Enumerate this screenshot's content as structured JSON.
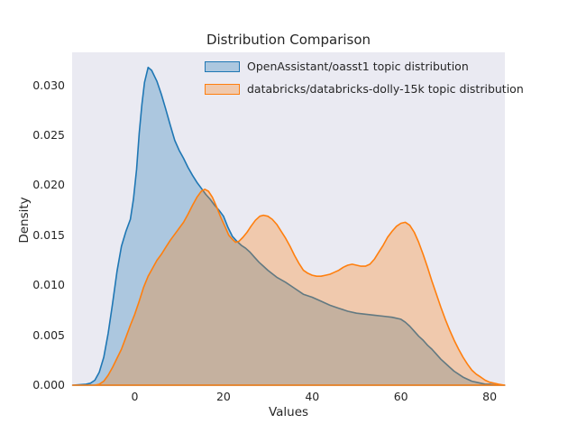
{
  "chart_data": {
    "type": "area",
    "subtype": "kde-density",
    "title": "Distribution Comparison",
    "xlabel": "Values",
    "ylabel": "Density",
    "xlim": [
      -14.1,
      83.4
    ],
    "ylim": [
      0,
      0.0333
    ],
    "x_ticks": [
      "0",
      "20",
      "40",
      "60",
      "80"
    ],
    "y_ticks": [
      "0.000",
      "0.005",
      "0.010",
      "0.015",
      "0.020",
      "0.025",
      "0.030"
    ],
    "grid": false,
    "legend_position": "upper center inside plot",
    "background_color": "#eaeaf2",
    "figure_background": "#ffffff",
    "text_color": "#262626",
    "series": [
      {
        "name": "OpenAssistant/oasst1 topic distribution",
        "line_color": "#1f77b4",
        "fill_color": "rgba(31,119,180,0.3)",
        "peak": {
          "x": 3,
          "density": 0.0318
        },
        "points": [
          [
            -14,
            0
          ],
          [
            -11,
            0.0001
          ],
          [
            -10,
            0.0002
          ],
          [
            -9,
            0.0005
          ],
          [
            -8,
            0.0013
          ],
          [
            -7,
            0.0028
          ],
          [
            -6,
            0.0052
          ],
          [
            -5,
            0.0082
          ],
          [
            -4,
            0.0114
          ],
          [
            -3,
            0.0139
          ],
          [
            -2,
            0.0154
          ],
          [
            -1,
            0.0166
          ],
          [
            -0.3,
            0.0186
          ],
          [
            0.4,
            0.0216
          ],
          [
            1,
            0.0252
          ],
          [
            1.6,
            0.0281
          ],
          [
            2.2,
            0.0303
          ],
          [
            3,
            0.0318
          ],
          [
            3.8,
            0.0315
          ],
          [
            5,
            0.0304
          ],
          [
            6,
            0.0291
          ],
          [
            7,
            0.0276
          ],
          [
            8,
            0.026
          ],
          [
            9,
            0.0245
          ],
          [
            10,
            0.0235
          ],
          [
            11,
            0.0227
          ],
          [
            12,
            0.0218
          ],
          [
            13,
            0.021
          ],
          [
            14,
            0.0203
          ],
          [
            15,
            0.0197
          ],
          [
            16,
            0.0191
          ],
          [
            17,
            0.0186
          ],
          [
            18,
            0.018
          ],
          [
            19,
            0.0175
          ],
          [
            20,
            0.0169
          ],
          [
            21,
            0.0158
          ],
          [
            22,
            0.0149
          ],
          [
            23,
            0.0144
          ],
          [
            24,
            0.014
          ],
          [
            25,
            0.0137
          ],
          [
            26,
            0.0133
          ],
          [
            27,
            0.0128
          ],
          [
            28,
            0.0123
          ],
          [
            29,
            0.0119
          ],
          [
            30,
            0.0115
          ],
          [
            32,
            0.0108
          ],
          [
            34,
            0.0103
          ],
          [
            36,
            0.0097
          ],
          [
            38,
            0.0091
          ],
          [
            40,
            0.0088
          ],
          [
            42,
            0.0084
          ],
          [
            44,
            0.008
          ],
          [
            46,
            0.0077
          ],
          [
            48,
            0.0074
          ],
          [
            50,
            0.0072
          ],
          [
            52,
            0.0071
          ],
          [
            54,
            0.007
          ],
          [
            56,
            0.0069
          ],
          [
            58,
            0.0068
          ],
          [
            60,
            0.0066
          ],
          [
            61,
            0.0063
          ],
          [
            62,
            0.0059
          ],
          [
            63,
            0.0054
          ],
          [
            64,
            0.0049
          ],
          [
            65,
            0.0045
          ],
          [
            66,
            0.004
          ],
          [
            67,
            0.0036
          ],
          [
            68,
            0.0031
          ],
          [
            69,
            0.0026
          ],
          [
            70,
            0.0022
          ],
          [
            71,
            0.0018
          ],
          [
            72,
            0.0014
          ],
          [
            73,
            0.0011
          ],
          [
            74,
            0.0008
          ],
          [
            75,
            0.0006
          ],
          [
            76,
            0.0004
          ],
          [
            77,
            0.0003
          ],
          [
            78,
            0.0002
          ],
          [
            79,
            0.0001
          ],
          [
            80,
            0.0001
          ],
          [
            81.5,
            0
          ],
          [
            83.4,
            0
          ]
        ]
      },
      {
        "name": "databricks/databricks-dolly-15k topic distribution",
        "line_color": "#ff7f0e",
        "fill_color": "rgba(255,127,14,0.3)",
        "peak": {
          "x": 16,
          "density": 0.0196
        },
        "points": [
          [
            -14,
            0
          ],
          [
            -9,
            0
          ],
          [
            -8,
            0.0001
          ],
          [
            -7,
            0.0004
          ],
          [
            -6,
            0.001
          ],
          [
            -5,
            0.0018
          ],
          [
            -4,
            0.0027
          ],
          [
            -3,
            0.0036
          ],
          [
            -2,
            0.0048
          ],
          [
            -1,
            0.006
          ],
          [
            0,
            0.0071
          ],
          [
            1,
            0.0084
          ],
          [
            2,
            0.0098
          ],
          [
            3,
            0.0109
          ],
          [
            4,
            0.0117
          ],
          [
            5,
            0.0125
          ],
          [
            6,
            0.0131
          ],
          [
            7,
            0.0138
          ],
          [
            8,
            0.0145
          ],
          [
            9,
            0.0151
          ],
          [
            10,
            0.0157
          ],
          [
            11,
            0.0163
          ],
          [
            12,
            0.0171
          ],
          [
            13,
            0.018
          ],
          [
            14,
            0.0188
          ],
          [
            15,
            0.0194
          ],
          [
            15.8,
            0.0196
          ],
          [
            16.6,
            0.0194
          ],
          [
            17.5,
            0.0188
          ],
          [
            18.4,
            0.0179
          ],
          [
            19.4,
            0.0168
          ],
          [
            20.4,
            0.0158
          ],
          [
            21.2,
            0.015
          ],
          [
            22,
            0.0146
          ],
          [
            22.7,
            0.0143
          ],
          [
            23.5,
            0.0144
          ],
          [
            24.4,
            0.0148
          ],
          [
            25.3,
            0.0153
          ],
          [
            26.2,
            0.0159
          ],
          [
            27.2,
            0.0165
          ],
          [
            28.2,
            0.0169
          ],
          [
            29,
            0.017
          ],
          [
            30,
            0.0169
          ],
          [
            31,
            0.0166
          ],
          [
            32,
            0.0161
          ],
          [
            33,
            0.0154
          ],
          [
            34,
            0.0147
          ],
          [
            35,
            0.0139
          ],
          [
            36,
            0.013
          ],
          [
            37,
            0.0122
          ],
          [
            38,
            0.0115
          ],
          [
            39,
            0.0112
          ],
          [
            40,
            0.011
          ],
          [
            41,
            0.0109
          ],
          [
            42,
            0.0109
          ],
          [
            43,
            0.011
          ],
          [
            44,
            0.0111
          ],
          [
            45,
            0.0113
          ],
          [
            46,
            0.0115
          ],
          [
            47,
            0.0118
          ],
          [
            48,
            0.012
          ],
          [
            49,
            0.0121
          ],
          [
            50,
            0.012
          ],
          [
            51,
            0.0119
          ],
          [
            52,
            0.0119
          ],
          [
            53,
            0.0121
          ],
          [
            54,
            0.0126
          ],
          [
            55,
            0.0133
          ],
          [
            56,
            0.014
          ],
          [
            57,
            0.0148
          ],
          [
            58,
            0.0154
          ],
          [
            59,
            0.0159
          ],
          [
            60,
            0.0162
          ],
          [
            61,
            0.0163
          ],
          [
            62,
            0.016
          ],
          [
            63,
            0.0153
          ],
          [
            64,
            0.0143
          ],
          [
            65,
            0.0131
          ],
          [
            66,
            0.0118
          ],
          [
            67,
            0.0104
          ],
          [
            68,
            0.0091
          ],
          [
            69,
            0.0078
          ],
          [
            70,
            0.0066
          ],
          [
            71,
            0.0055
          ],
          [
            72,
            0.0045
          ],
          [
            73,
            0.0036
          ],
          [
            74,
            0.0028
          ],
          [
            75,
            0.0021
          ],
          [
            76,
            0.0015
          ],
          [
            77,
            0.0011
          ],
          [
            78,
            0.0008
          ],
          [
            79,
            0.0005
          ],
          [
            80,
            0.0003
          ],
          [
            81,
            0.0002
          ],
          [
            82,
            0.0001
          ],
          [
            83.4,
            0
          ]
        ]
      }
    ]
  }
}
